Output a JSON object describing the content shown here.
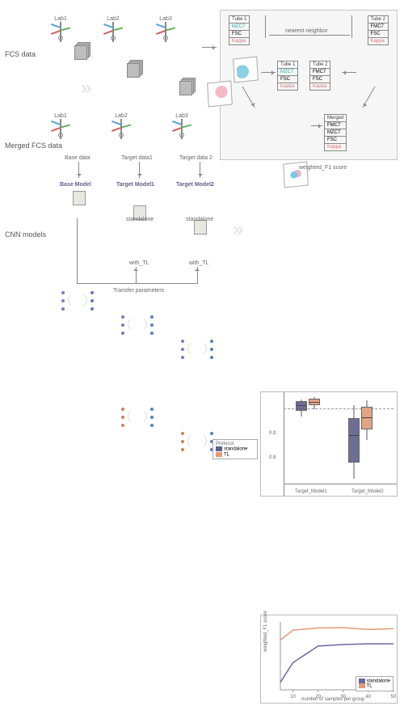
{
  "rowLabels": {
    "fcs": "FCS data",
    "merged": "Merged FCS data",
    "cnn": "CNN models"
  },
  "labs": [
    "Lab1",
    "Lab2",
    "Lab3"
  ],
  "mergedLabels": [
    "Base data",
    "Target data1",
    "Target data 2"
  ],
  "models": {
    "base": "Base Model",
    "t1": "Target Model1",
    "t2": "Target Model2",
    "standalone": "standalone",
    "withTL": "with_TL",
    "transfer": "Transfer parameters"
  },
  "inset": {
    "nn": "nearest neighbor",
    "tube1": {
      "title": "Tube 1",
      "rows": [
        "MZC7",
        "FSC",
        "Kappa"
      ],
      "rowColors": [
        "teal",
        "",
        "pink"
      ]
    },
    "tube2": {
      "title": "Tube 2",
      "rows": [
        "FMC7",
        "FSC",
        "Kappa"
      ],
      "rowColors": [
        "",
        "",
        "pink"
      ]
    },
    "mid1": {
      "title": "Tube 1",
      "rows": [
        "MZC7",
        "FSC",
        "Kappa"
      ],
      "rowColors": [
        "teal",
        "",
        "pink"
      ]
    },
    "mid2": {
      "title": "Tube 2",
      "rows": [
        "FMC7",
        "FSC",
        "Kappa"
      ],
      "rowColors": [
        "",
        "",
        "pink"
      ]
    },
    "merged": {
      "title": "Merged",
      "rows": [
        "FMC7",
        "MZC7",
        "FSC",
        "Kappa"
      ],
      "rowColors": [
        "",
        "",
        "",
        "pink"
      ]
    }
  },
  "boxplot": {
    "title": "weighted_F1 score",
    "ylabel": "weighted_F1 score",
    "yticks": [
      "0.8",
      "0.9"
    ],
    "ylim": [
      0.5,
      1.0
    ],
    "xcats": [
      "Target_Model1",
      "Target_Model2"
    ],
    "legend": {
      "title": "Protocol",
      "items": [
        {
          "label": "standalone",
          "color": "#5f5f8a"
        },
        {
          "label": "TL",
          "color": "#e19b78"
        }
      ]
    },
    "groups": [
      {
        "cat": 0,
        "proto": "standalone",
        "q1": 0.9,
        "med": 0.935,
        "q3": 0.95,
        "lo": 0.87,
        "hi": 0.96,
        "color": "#5f5f8a"
      },
      {
        "cat": 0,
        "proto": "TL",
        "q1": 0.93,
        "med": 0.95,
        "q3": 0.965,
        "lo": 0.91,
        "hi": 0.975,
        "color": "#e19b78"
      },
      {
        "cat": 1,
        "proto": "standalone",
        "q1": 0.62,
        "med": 0.77,
        "q3": 0.86,
        "lo": 0.53,
        "hi": 0.93,
        "color": "#5f5f8a"
      },
      {
        "cat": 1,
        "proto": "TL",
        "q1": 0.8,
        "med": 0.87,
        "q3": 0.92,
        "lo": 0.74,
        "hi": 0.955,
        "color": "#e19b78"
      }
    ],
    "hline": 0.965,
    "colors": {
      "grid": "#e6e6e6",
      "axis": "#888888",
      "bg": "#ffffff"
    }
  },
  "lineplot": {
    "xlabel": "number of samples per group",
    "ylabel": "weighted_F1 score",
    "xlim": [
      5,
      50
    ],
    "ylim": [
      0.55,
      1.0
    ],
    "xticks": [
      10,
      20,
      30,
      40,
      50
    ],
    "legend": [
      {
        "label": "standalone",
        "color": "#6a6aa0"
      },
      {
        "label": "TL",
        "color": "#e19b78"
      }
    ],
    "series": {
      "standalone": {
        "color": "#6a6aa0",
        "pts": [
          [
            5,
            0.6
          ],
          [
            10,
            0.73
          ],
          [
            20,
            0.84
          ],
          [
            30,
            0.85
          ],
          [
            40,
            0.855
          ],
          [
            50,
            0.855
          ]
        ]
      },
      "TL": {
        "color": "#e19b78",
        "pts": [
          [
            5,
            0.88
          ],
          [
            10,
            0.945
          ],
          [
            20,
            0.96
          ],
          [
            30,
            0.962
          ],
          [
            40,
            0.95
          ],
          [
            50,
            0.955
          ]
        ]
      }
    },
    "colors": {
      "bg": "#ffffff",
      "axis": "#999"
    }
  },
  "palette": {
    "blue": "#5f5f8a",
    "orange": "#e19b78",
    "cubeBlue": "#7ec8e3",
    "cubePink": "#f5b0c0",
    "insetBg": "#f6f6f6",
    "gridBorder": "#c6c6c6"
  }
}
